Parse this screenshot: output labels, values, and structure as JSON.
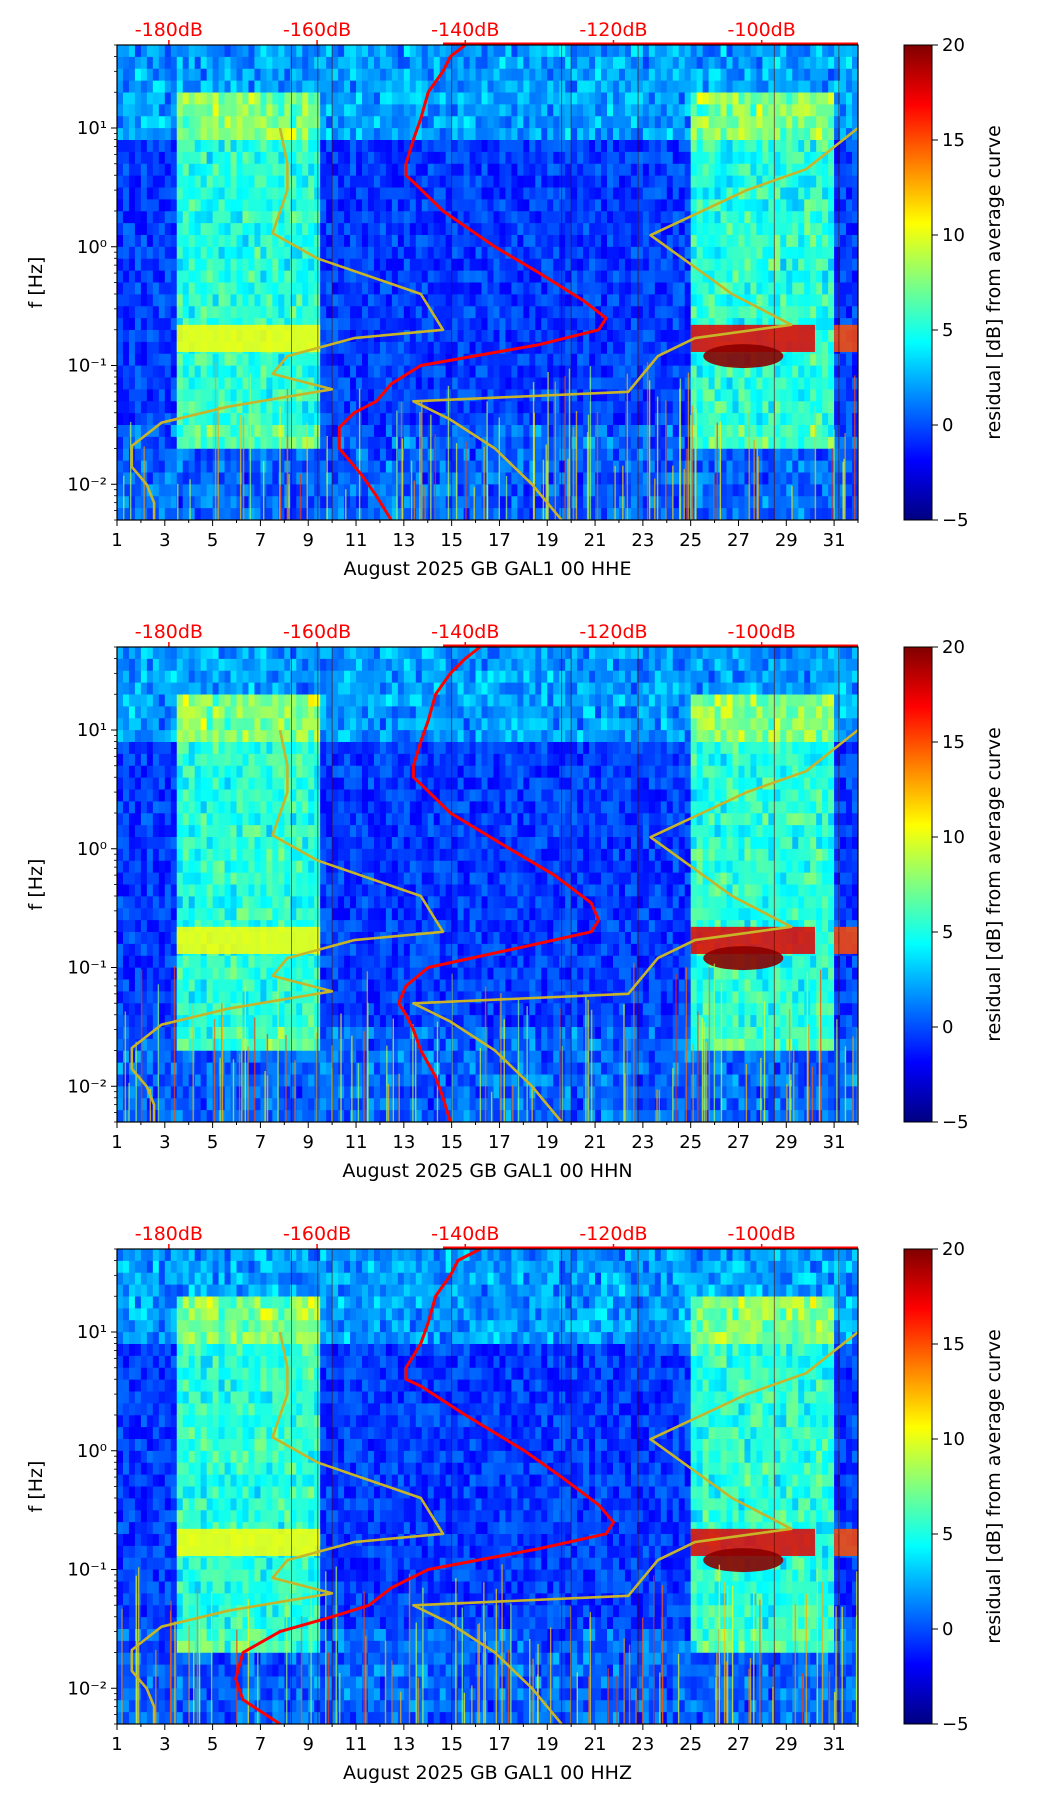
{
  "chart_data": [
    {
      "type": "heatmap",
      "title": "",
      "xlabel": "August 2025 GB GAL1 00 HHE",
      "ylabel": "f [Hz]",
      "xlim": [
        1,
        32
      ],
      "ylim": [
        0.005,
        50
      ],
      "x_ticks": [
        "1",
        "3",
        "5",
        "7",
        "9",
        "11",
        "13",
        "15",
        "17",
        "19",
        "21",
        "23",
        "25",
        "27",
        "29",
        "31"
      ],
      "y_ticks": [
        {
          "value": 0.01,
          "label": "10⁻²"
        },
        {
          "value": 0.1,
          "label": "10⁻¹"
        },
        {
          "value": 1,
          "label": "10⁰"
        },
        {
          "value": 10,
          "label": "10¹"
        }
      ],
      "top_axis_labels": [
        "-180dB",
        "-160dB",
        "-140dB",
        "-120dB",
        "-100dB"
      ],
      "top_axis_range_db": [
        -187,
        -87
      ],
      "colorbar": {
        "label": "residual [dB] from average curve",
        "min": -5,
        "max": 20,
        "ticks": [
          "−5",
          "0",
          "5",
          "10",
          "15",
          "20"
        ],
        "colormap": "jet"
      },
      "series": [
        {
          "name": "average PSD",
          "color": "#ff0000",
          "unit": "dB",
          "points": [
            [
              50,
              -140
            ],
            [
              40,
              -142
            ],
            [
              30,
              -143
            ],
            [
              20,
              -145
            ],
            [
              12,
              -146
            ],
            [
              8,
              -147
            ],
            [
              5,
              -148
            ],
            [
              4,
              -148
            ],
            [
              3.5,
              -147
            ],
            [
              2,
              -143
            ],
            [
              1,
              -136
            ],
            [
              0.6,
              -130
            ],
            [
              0.35,
              -124
            ],
            [
              0.25,
              -121
            ],
            [
              0.2,
              -122
            ],
            [
              0.15,
              -130
            ],
            [
              0.1,
              -146
            ],
            [
              0.07,
              -150
            ],
            [
              0.05,
              -152
            ],
            [
              0.04,
              -155
            ],
            [
              0.03,
              -157
            ],
            [
              0.02,
              -157
            ],
            [
              0.012,
              -154
            ],
            [
              0.008,
              -152
            ],
            [
              0.005,
              -150
            ]
          ]
        },
        {
          "name": "NLNM",
          "color": "#c8b428",
          "unit": "dB",
          "points": [
            [
              10,
              -165
            ],
            [
              5,
              -164
            ],
            [
              3,
              -164
            ],
            [
              1.3,
              -166
            ],
            [
              0.8,
              -160
            ],
            [
              0.4,
              -146
            ],
            [
              0.2,
              -143
            ],
            [
              0.17,
              -155
            ],
            [
              0.12,
              -164
            ],
            [
              0.085,
              -166
            ],
            [
              0.063,
              -158
            ],
            [
              0.045,
              -172
            ],
            [
              0.033,
              -181
            ],
            [
              0.021,
              -185
            ],
            [
              0.014,
              -185
            ],
            [
              0.01,
              -183
            ],
            [
              0.007,
              -182
            ],
            [
              0.005,
              -182
            ]
          ]
        },
        {
          "name": "NHNM",
          "color": "#c8b428",
          "unit": "dB",
          "points": [
            [
              10,
              -87
            ],
            [
              4.5,
              -94
            ],
            [
              3,
              -102
            ],
            [
              1.25,
              -115
            ],
            [
              0.4,
              -104
            ],
            [
              0.22,
              -96
            ],
            [
              0.17,
              -109
            ],
            [
              0.12,
              -114
            ],
            [
              0.06,
              -118
            ],
            [
              0.05,
              -147
            ],
            [
              0.035,
              -142
            ],
            [
              0.02,
              -136
            ],
            [
              0.01,
              -131
            ],
            [
              0.005,
              -127
            ]
          ]
        }
      ]
    },
    {
      "type": "heatmap",
      "title": "",
      "xlabel": "August 2025 GB GAL1 00 HHN",
      "ylabel": "f [Hz]",
      "xlim": [
        1,
        32
      ],
      "ylim": [
        0.005,
        50
      ],
      "x_ticks": [
        "1",
        "3",
        "5",
        "7",
        "9",
        "11",
        "13",
        "15",
        "17",
        "19",
        "21",
        "23",
        "25",
        "27",
        "29",
        "31"
      ],
      "y_ticks": [
        {
          "value": 0.01,
          "label": "10⁻²"
        },
        {
          "value": 0.1,
          "label": "10⁻¹"
        },
        {
          "value": 1,
          "label": "10⁰"
        },
        {
          "value": 10,
          "label": "10¹"
        }
      ],
      "top_axis_labels": [
        "-180dB",
        "-160dB",
        "-140dB",
        "-120dB",
        "-100dB"
      ],
      "top_axis_range_db": [
        -187,
        -87
      ],
      "colorbar": {
        "label": "residual [dB] from average curve",
        "min": -5,
        "max": 20,
        "ticks": [
          "−5",
          "0",
          "5",
          "10",
          "15",
          "20"
        ],
        "colormap": "jet"
      },
      "series": [
        {
          "name": "average PSD",
          "color": "#ff0000",
          "unit": "dB",
          "points": [
            [
              50,
              -138
            ],
            [
              40,
              -140
            ],
            [
              30,
              -142
            ],
            [
              20,
              -144
            ],
            [
              12,
              -145
            ],
            [
              8,
              -146
            ],
            [
              5,
              -147
            ],
            [
              4,
              -147
            ],
            [
              3.5,
              -146
            ],
            [
              2,
              -142
            ],
            [
              1,
              -134
            ],
            [
              0.6,
              -128
            ],
            [
              0.35,
              -123
            ],
            [
              0.25,
              -122
            ],
            [
              0.2,
              -123
            ],
            [
              0.15,
              -132
            ],
            [
              0.1,
              -145
            ],
            [
              0.07,
              -148
            ],
            [
              0.05,
              -149
            ],
            [
              0.04,
              -148
            ],
            [
              0.03,
              -147
            ],
            [
              0.02,
              -146
            ],
            [
              0.012,
              -144
            ],
            [
              0.008,
              -143
            ],
            [
              0.005,
              -142
            ]
          ]
        },
        {
          "name": "NLNM",
          "color": "#c8b428",
          "unit": "dB",
          "points": [
            [
              10,
              -165
            ],
            [
              5,
              -164
            ],
            [
              3,
              -164
            ],
            [
              1.3,
              -166
            ],
            [
              0.8,
              -160
            ],
            [
              0.4,
              -146
            ],
            [
              0.2,
              -143
            ],
            [
              0.17,
              -155
            ],
            [
              0.12,
              -164
            ],
            [
              0.085,
              -166
            ],
            [
              0.063,
              -158
            ],
            [
              0.045,
              -172
            ],
            [
              0.033,
              -181
            ],
            [
              0.021,
              -185
            ],
            [
              0.014,
              -185
            ],
            [
              0.01,
              -183
            ],
            [
              0.007,
              -182
            ],
            [
              0.005,
              -182
            ]
          ]
        },
        {
          "name": "NHNM",
          "color": "#c8b428",
          "unit": "dB",
          "points": [
            [
              10,
              -87
            ],
            [
              4.5,
              -94
            ],
            [
              3,
              -102
            ],
            [
              1.25,
              -115
            ],
            [
              0.4,
              -104
            ],
            [
              0.22,
              -96
            ],
            [
              0.17,
              -109
            ],
            [
              0.12,
              -114
            ],
            [
              0.06,
              -118
            ],
            [
              0.05,
              -147
            ],
            [
              0.035,
              -142
            ],
            [
              0.02,
              -136
            ],
            [
              0.01,
              -131
            ],
            [
              0.005,
              -127
            ]
          ]
        }
      ]
    },
    {
      "type": "heatmap",
      "title": "",
      "xlabel": "August 2025 GB GAL1 00 HHZ",
      "ylabel": "f [Hz]",
      "xlim": [
        1,
        32
      ],
      "ylim": [
        0.005,
        50
      ],
      "x_ticks": [
        "1",
        "3",
        "5",
        "7",
        "9",
        "11",
        "13",
        "15",
        "17",
        "19",
        "21",
        "23",
        "25",
        "27",
        "29",
        "31"
      ],
      "y_ticks": [
        {
          "value": 0.01,
          "label": "10⁻²"
        },
        {
          "value": 0.1,
          "label": "10⁻¹"
        },
        {
          "value": 1,
          "label": "10⁰"
        },
        {
          "value": 10,
          "label": "10¹"
        }
      ],
      "top_axis_labels": [
        "-180dB",
        "-160dB",
        "-140dB",
        "-120dB",
        "-100dB"
      ],
      "top_axis_range_db": [
        -187,
        -87
      ],
      "colorbar": {
        "label": "residual [dB] from average curve",
        "min": -5,
        "max": 20,
        "ticks": [
          "−5",
          "0",
          "5",
          "10",
          "15",
          "20"
        ],
        "colormap": "jet"
      },
      "series": [
        {
          "name": "average PSD",
          "color": "#ff0000",
          "unit": "dB",
          "points": [
            [
              50,
              -138
            ],
            [
              40,
              -141
            ],
            [
              30,
              -142
            ],
            [
              20,
              -144
            ],
            [
              12,
              -145
            ],
            [
              8,
              -146
            ],
            [
              5,
              -148
            ],
            [
              4,
              -148
            ],
            [
              3.5,
              -146
            ],
            [
              2,
              -140
            ],
            [
              1,
              -132
            ],
            [
              0.6,
              -127
            ],
            [
              0.35,
              -122
            ],
            [
              0.25,
              -120
            ],
            [
              0.2,
              -121
            ],
            [
              0.15,
              -130
            ],
            [
              0.1,
              -145
            ],
            [
              0.07,
              -150
            ],
            [
              0.05,
              -153
            ],
            [
              0.04,
              -158
            ],
            [
              0.03,
              -165
            ],
            [
              0.02,
              -170
            ],
            [
              0.012,
              -171
            ],
            [
              0.008,
              -170
            ],
            [
              0.005,
              -165
            ]
          ]
        },
        {
          "name": "NLNM",
          "color": "#c8b428",
          "unit": "dB",
          "points": [
            [
              10,
              -165
            ],
            [
              5,
              -164
            ],
            [
              3,
              -164
            ],
            [
              1.3,
              -166
            ],
            [
              0.8,
              -160
            ],
            [
              0.4,
              -146
            ],
            [
              0.2,
              -143
            ],
            [
              0.17,
              -155
            ],
            [
              0.12,
              -164
            ],
            [
              0.085,
              -166
            ],
            [
              0.063,
              -158
            ],
            [
              0.045,
              -172
            ],
            [
              0.033,
              -181
            ],
            [
              0.021,
              -185
            ],
            [
              0.014,
              -185
            ],
            [
              0.01,
              -183
            ],
            [
              0.007,
              -182
            ],
            [
              0.005,
              -182
            ]
          ]
        },
        {
          "name": "NHNM",
          "color": "#c8b428",
          "unit": "dB",
          "points": [
            [
              10,
              -87
            ],
            [
              4.5,
              -94
            ],
            [
              3,
              -102
            ],
            [
              1.25,
              -115
            ],
            [
              0.4,
              -104
            ],
            [
              0.22,
              -96
            ],
            [
              0.17,
              -109
            ],
            [
              0.12,
              -114
            ],
            [
              0.06,
              -118
            ],
            [
              0.05,
              -147
            ],
            [
              0.035,
              -142
            ],
            [
              0.02,
              -136
            ],
            [
              0.01,
              -131
            ],
            [
              0.005,
              -127
            ]
          ]
        }
      ]
    }
  ]
}
